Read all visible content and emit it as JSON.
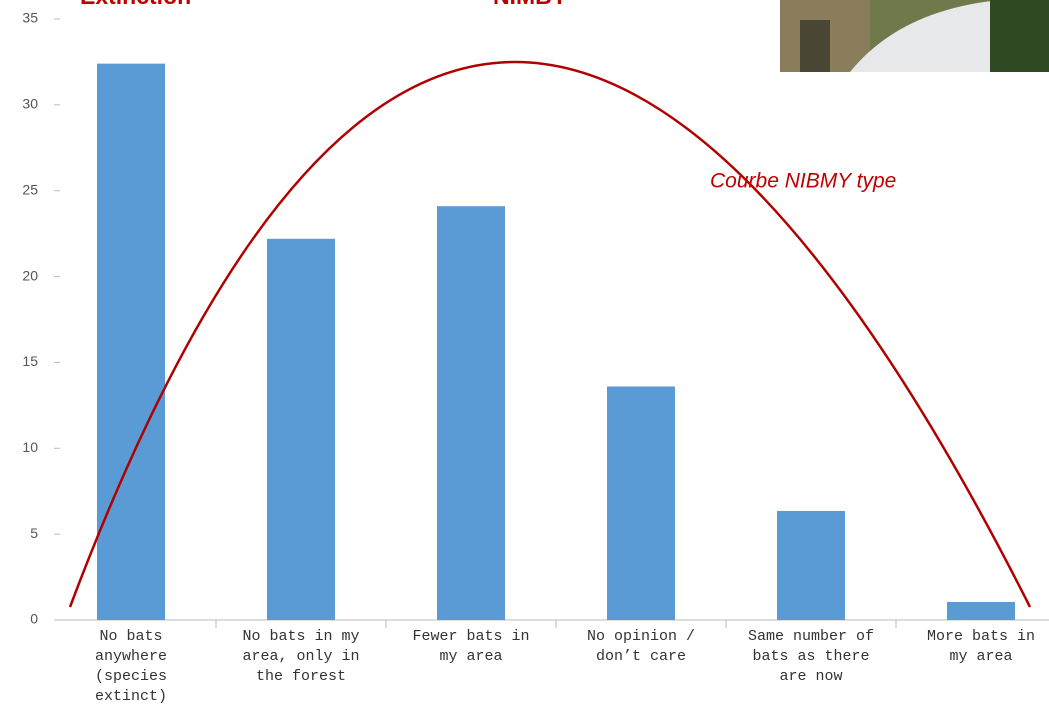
{
  "chart_data": {
    "type": "bar",
    "categories": [
      "No bats\nanywhere\n(species\nextinct)",
      "No bats in my\narea, only in\nthe forest",
      "Fewer bats in\nmy area",
      "No opinion /\ndon’t care",
      "Same number of\nbats as there\nare now",
      "More bats in\nmy area"
    ],
    "values": [
      32.4,
      22.2,
      24.1,
      13.6,
      6.35,
      1.05
    ],
    "color": "#5b9bd5",
    "ylim": [
      0,
      35
    ],
    "yticks": [
      0,
      5,
      10,
      15,
      20,
      25,
      30,
      35
    ],
    "annotations": [
      "Extinction",
      "NIMBY",
      "Courbe NIBMY type"
    ]
  }
}
